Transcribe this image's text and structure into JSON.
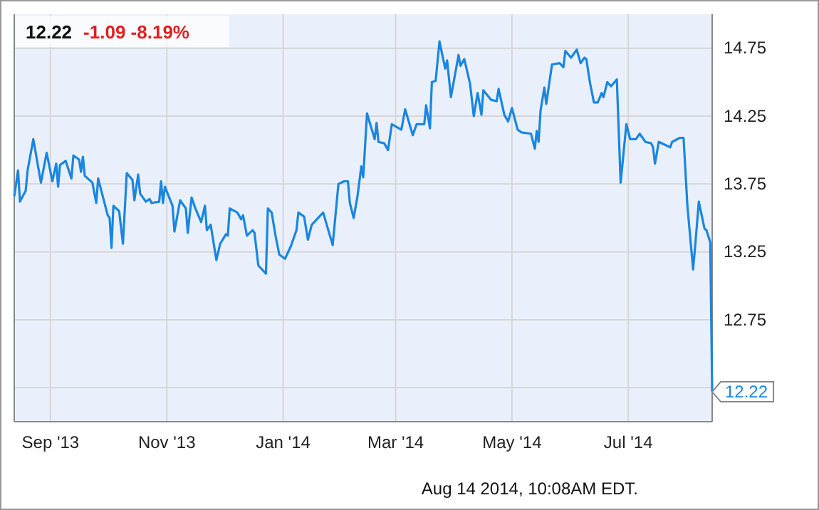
{
  "chart_data": {
    "type": "line",
    "title": "12.22",
    "subtitle": "-1.09 -8.19%",
    "annotations": [
      {
        "text": "12.22",
        "x": "2014-08-14",
        "y": 12.22
      },
      "Aug 14 2014, 10:08AM EDT."
    ],
    "xlim": [
      "2013-08-13",
      "2014-08-14"
    ],
    "xticks": [
      {
        "value": "2013-09-01",
        "label": "Sep '13"
      },
      {
        "value": "2013-11-01",
        "label": "Nov '13"
      },
      {
        "value": "2014-01-01",
        "label": "Jan '14"
      },
      {
        "value": "2014-03-01",
        "label": "Mar '14"
      },
      {
        "value": "2014-05-01",
        "label": "May '14"
      },
      {
        "value": "2014-07-01",
        "label": "Jul '14"
      }
    ],
    "ylim": [
      12,
      15
    ],
    "yticks": [
      {
        "value": 12.25,
        "label": null
      },
      12.75,
      13.25,
      13.75,
      14.25,
      14.75
    ],
    "grid": true,
    "marker": "none",
    "line_style": "solid",
    "series": [
      {
        "color": "#1a86e0",
        "x": [
          "2013-08-13",
          "2013-08-15",
          "2013-08-16",
          "2013-08-19",
          "2013-08-20",
          "2013-08-23",
          "2013-08-27",
          "2013-08-30",
          "2013-09-02",
          "2013-09-04",
          "2013-09-05",
          "2013-09-06",
          "2013-09-09",
          "2013-09-12",
          "2013-09-13",
          "2013-09-16",
          "2013-09-17",
          "2013-09-18",
          "2013-09-19",
          "2013-09-23",
          "2013-09-25",
          "2013-09-26",
          "2013-10-01",
          "2013-10-02",
          "2013-10-03",
          "2013-10-04",
          "2013-10-07",
          "2013-10-09",
          "2013-10-11",
          "2013-10-14",
          "2013-10-15",
          "2013-10-17",
          "2013-10-18",
          "2013-10-21",
          "2013-10-23",
          "2013-10-24",
          "2013-10-28",
          "2013-10-29",
          "2013-10-30",
          "2013-10-31",
          "2013-11-04",
          "2013-11-05",
          "2013-11-08",
          "2013-11-11",
          "2013-11-12",
          "2013-11-14",
          "2013-11-16",
          "2013-11-19",
          "2013-11-21",
          "2013-11-22",
          "2013-11-24",
          "2013-11-27",
          "2013-11-29",
          "2013-12-02",
          "2013-12-03",
          "2013-12-04",
          "2013-12-08",
          "2013-12-10",
          "2013-12-11",
          "2013-12-13",
          "2013-12-16",
          "2013-12-17",
          "2013-12-19",
          "2013-12-23",
          "2013-12-24",
          "2013-12-26",
          "2013-12-28",
          "2013-12-30",
          "2014-01-02",
          "2014-01-05",
          "2014-01-08",
          "2014-01-09",
          "2014-01-12",
          "2014-01-14",
          "2014-01-16",
          "2014-01-22",
          "2014-01-27",
          "2014-01-30",
          "2014-02-02",
          "2014-02-04",
          "2014-02-05",
          "2014-02-07",
          "2014-02-09",
          "2014-02-11",
          "2014-02-12",
          "2014-02-14",
          "2014-02-18",
          "2014-02-19",
          "2014-02-20",
          "2014-02-23",
          "2014-02-25",
          "2014-02-27",
          "2014-03-04",
          "2014-03-06",
          "2014-03-10",
          "2014-03-12",
          "2014-03-16",
          "2014-03-17",
          "2014-03-19",
          "2014-03-20",
          "2014-03-22",
          "2014-03-24",
          "2014-03-27",
          "2014-03-28",
          "2014-03-30",
          "2014-04-03",
          "2014-04-04",
          "2014-04-06",
          "2014-04-09",
          "2014-04-11",
          "2014-04-13",
          "2014-04-15",
          "2014-04-16",
          "2014-04-20",
          "2014-04-23",
          "2014-04-24",
          "2014-04-27",
          "2014-04-29",
          "2014-05-01",
          "2014-05-04",
          "2014-05-06",
          "2014-05-11",
          "2014-05-13",
          "2014-05-14",
          "2014-05-15",
          "2014-05-16",
          "2014-05-18",
          "2014-05-19",
          "2014-05-22",
          "2014-05-26",
          "2014-05-28",
          "2014-05-29",
          "2014-06-01",
          "2014-06-04",
          "2014-06-06",
          "2014-06-08",
          "2014-06-09",
          "2014-06-11",
          "2014-06-13",
          "2014-06-15",
          "2014-06-17",
          "2014-06-18",
          "2014-06-20",
          "2014-06-22",
          "2014-06-25",
          "2014-06-27",
          "2014-06-30",
          "2014-07-02",
          "2014-07-05",
          "2014-07-07",
          "2014-07-10",
          "2014-07-13",
          "2014-07-14",
          "2014-07-15",
          "2014-07-17",
          "2014-07-20",
          "2014-07-23",
          "2014-07-24",
          "2014-07-28",
          "2014-07-30",
          "2014-08-01",
          "2014-08-04",
          "2014-08-05",
          "2014-08-07",
          "2014-08-10",
          "2014-08-11",
          "2014-08-13",
          "2014-08-14"
        ],
        "values": [
          13.66,
          13.85,
          13.62,
          13.7,
          13.85,
          14.08,
          13.76,
          13.98,
          13.77,
          13.9,
          13.73,
          13.89,
          13.92,
          13.79,
          13.96,
          13.93,
          13.84,
          13.95,
          13.81,
          13.76,
          13.61,
          13.79,
          13.52,
          13.5,
          13.28,
          13.59,
          13.55,
          13.31,
          13.83,
          13.78,
          13.63,
          13.82,
          13.68,
          13.62,
          13.64,
          13.61,
          13.62,
          13.77,
          13.61,
          13.73,
          13.59,
          13.4,
          13.63,
          13.57,
          13.39,
          13.65,
          13.57,
          13.47,
          13.59,
          13.41,
          13.45,
          13.19,
          13.31,
          13.38,
          13.37,
          13.57,
          13.54,
          13.49,
          13.52,
          13.37,
          13.41,
          13.39,
          13.15,
          13.09,
          13.57,
          13.54,
          13.37,
          13.23,
          13.2,
          13.29,
          13.41,
          13.54,
          13.51,
          13.34,
          13.45,
          13.54,
          13.3,
          13.75,
          13.77,
          13.77,
          13.61,
          13.5,
          13.66,
          13.88,
          13.8,
          14.27,
          14.08,
          14.2,
          14.06,
          14.05,
          14.0,
          14.19,
          14.15,
          14.3,
          14.11,
          14.19,
          14.19,
          14.33,
          14.16,
          14.5,
          14.51,
          14.8,
          14.6,
          14.66,
          14.39,
          14.7,
          14.62,
          14.67,
          14.49,
          14.25,
          14.42,
          14.26,
          14.44,
          14.37,
          14.36,
          14.45,
          14.26,
          14.21,
          14.31,
          14.15,
          14.13,
          14.12,
          14.01,
          14.14,
          14.06,
          14.29,
          14.46,
          14.34,
          14.63,
          14.64,
          14.61,
          14.73,
          14.68,
          14.74,
          14.64,
          14.68,
          14.67,
          14.49,
          14.35,
          14.35,
          14.42,
          14.39,
          14.5,
          14.47,
          14.52,
          13.76,
          14.19,
          14.08,
          14.08,
          14.12,
          14.06,
          14.05,
          14.02,
          13.9,
          14.06,
          14.04,
          14.02,
          14.06,
          14.09,
          14.09,
          13.59,
          13.12,
          13.28,
          13.62,
          13.42,
          13.41,
          13.32,
          12.22
        ]
      }
    ]
  }
}
